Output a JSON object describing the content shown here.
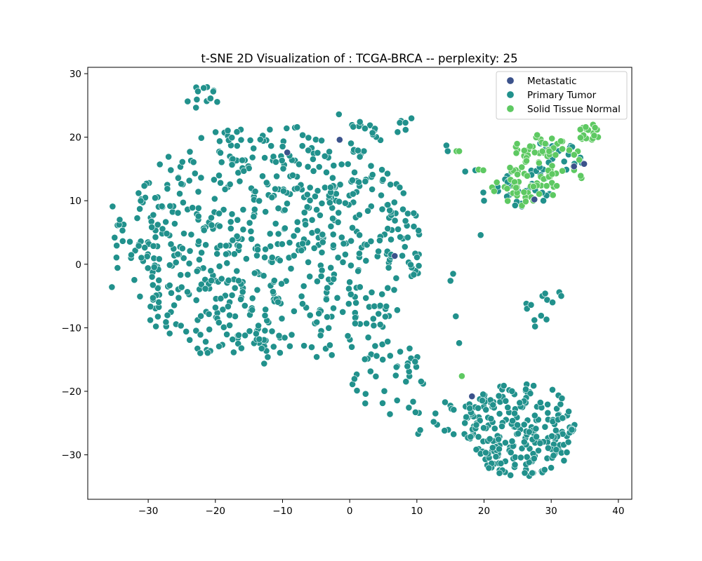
{
  "chart_data": {
    "type": "scatter",
    "title": "t-SNE 2D Visualization of : TCGA-BRCA -- perplexity: 25",
    "xlabel": "",
    "ylabel": "",
    "xlim": [
      -39,
      42
    ],
    "ylim": [
      -37,
      31
    ],
    "xticks": [
      -30,
      -20,
      -10,
      0,
      10,
      20,
      30,
      40
    ],
    "yticks": [
      -30,
      -20,
      -10,
      0,
      10,
      20,
      30
    ],
    "grid": false,
    "legend_position": "top-right",
    "colors": {
      "Metastatic": "#3b528b",
      "Primary Tumor": "#21918c",
      "Solid Tissue Normal": "#5ec962"
    },
    "series": [
      {
        "name": "Metastatic",
        "points": [
          [
            -1.5,
            19.6
          ],
          [
            -9.3,
            17.6
          ],
          [
            6.7,
            1.3
          ],
          [
            18.2,
            -20.8
          ],
          [
            33.4,
            15.4
          ],
          [
            34.9,
            15.8
          ],
          [
            27.5,
            10.2
          ]
        ]
      },
      {
        "name": "Primary Tumor",
        "clusters": [
          {
            "kind": "ellipse",
            "cx": -12,
            "cy": 3,
            "rx": 23,
            "ry": 19,
            "n": 700
          },
          {
            "kind": "ellipse",
            "cx": 6,
            "cy": -18,
            "rx": 6,
            "ry": 6,
            "n": 40
          },
          {
            "kind": "ellipse",
            "cx": -22,
            "cy": 26,
            "rx": 2.5,
            "ry": 2,
            "n": 14
          },
          {
            "kind": "ellipse",
            "cx": 5,
            "cy": 22,
            "rx": 5,
            "ry": 2.5,
            "n": 20
          },
          {
            "kind": "ellipse",
            "cx": 25.5,
            "cy": -26,
            "rx": 8.5,
            "ry": 7.5,
            "n": 240
          },
          {
            "kind": "ellipse",
            "cx": 16,
            "cy": -24,
            "rx": 3.5,
            "ry": 3,
            "n": 20
          },
          {
            "kind": "ellipse",
            "cx": 26,
            "cy": 12,
            "rx": 4,
            "ry": 3,
            "n": 30
          },
          {
            "kind": "ellipse",
            "cx": 31,
            "cy": 17,
            "rx": 4,
            "ry": 3,
            "n": 22
          }
        ],
        "points": [
          [
            -35.3,
            9.1
          ],
          [
            -35.4,
            -3.6
          ],
          [
            -35,
            4.2
          ],
          [
            -1.6,
            23.6
          ],
          [
            14.4,
            18.7
          ],
          [
            14.6,
            17.8
          ],
          [
            17.2,
            14.6
          ],
          [
            18.7,
            14.8
          ],
          [
            19.5,
            4.6
          ],
          [
            19.9,
            11.3
          ],
          [
            20,
            10
          ],
          [
            16.3,
            -12.4
          ],
          [
            15.8,
            -8.2
          ],
          [
            15,
            -2.6
          ],
          [
            15.4,
            -1.5
          ],
          [
            26.3,
            -6.2
          ],
          [
            26.4,
            -7
          ],
          [
            27,
            -6.4
          ],
          [
            27.5,
            -8.8
          ],
          [
            27.6,
            -9.8
          ],
          [
            28.7,
            -5
          ],
          [
            29.1,
            -4.6
          ],
          [
            29.4,
            -5.6
          ],
          [
            30.2,
            -6
          ],
          [
            31.2,
            -4.4
          ],
          [
            31.5,
            -5
          ],
          [
            28.5,
            -8.1
          ],
          [
            29.3,
            -8.7
          ],
          [
            10.2,
            -26.7
          ],
          [
            10.5,
            -26.1
          ],
          [
            10.3,
            -23.4
          ],
          [
            9.8,
            -23.3
          ],
          [
            12.5,
            -24.8
          ]
        ]
      },
      {
        "name": "Solid Tissue Normal",
        "clusters": [
          {
            "kind": "ellipse",
            "cx": 29,
            "cy": 15.5,
            "rx": 6,
            "ry": 5,
            "n": 80
          },
          {
            "kind": "ellipse",
            "cx": 36,
            "cy": 20.8,
            "rx": 2,
            "ry": 1.6,
            "n": 22
          },
          {
            "kind": "ellipse",
            "cx": 25,
            "cy": 11,
            "rx": 3,
            "ry": 2,
            "n": 18
          }
        ],
        "points": [
          [
            15.9,
            17.8
          ],
          [
            16.3,
            17.8
          ],
          [
            19.2,
            14.9
          ],
          [
            19.9,
            14.8
          ],
          [
            16.7,
            -17.6
          ],
          [
            21.2,
            12.1
          ],
          [
            21.5,
            11.5
          ],
          [
            21.9,
            12.9
          ]
        ]
      }
    ]
  }
}
